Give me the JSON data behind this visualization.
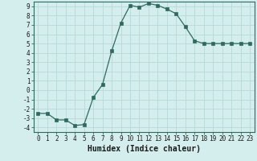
{
  "x": [
    0,
    1,
    2,
    3,
    4,
    5,
    6,
    7,
    8,
    9,
    10,
    11,
    12,
    13,
    14,
    15,
    16,
    17,
    18,
    19,
    20,
    21,
    22,
    23
  ],
  "y": [
    -2.5,
    -2.5,
    -3.2,
    -3.2,
    -3.8,
    -3.7,
    -0.8,
    0.6,
    4.2,
    7.2,
    9.1,
    8.9,
    9.3,
    9.1,
    8.7,
    8.2,
    6.8,
    5.3,
    5.0,
    5.0,
    5.0,
    5.0,
    5.0,
    5.0
  ],
  "line_color": "#2e6b5e",
  "marker": "s",
  "marker_size": 2.2,
  "xlabel": "Humidex (Indice chaleur)",
  "xlim": [
    -0.5,
    23.5
  ],
  "ylim": [
    -4.5,
    9.5
  ],
  "yticks": [
    -4,
    -3,
    -2,
    -1,
    0,
    1,
    2,
    3,
    4,
    5,
    6,
    7,
    8,
    9
  ],
  "xticks": [
    0,
    1,
    2,
    3,
    4,
    5,
    6,
    7,
    8,
    9,
    10,
    11,
    12,
    13,
    14,
    15,
    16,
    17,
    18,
    19,
    20,
    21,
    22,
    23
  ],
  "bg_color": "#d4eeee",
  "grid_color": "#b8d8d8",
  "tick_fontsize": 5.5,
  "xlabel_fontsize": 7.0
}
